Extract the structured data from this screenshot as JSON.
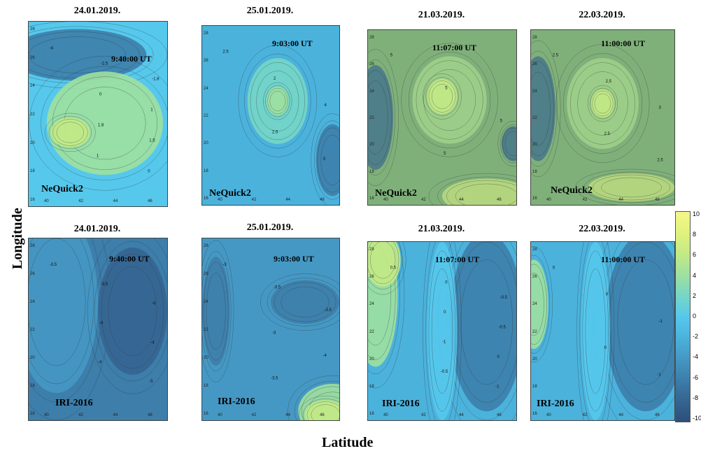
{
  "axes": {
    "ylabel": "Longitude",
    "xlabel": "Latitude"
  },
  "chart_data": [
    {
      "type": "heatmap",
      "row": "NeQuick2",
      "title": "24.01.2019.",
      "time": "9:40:00 UT",
      "model": "NeQuick2",
      "x_ticks": [
        "40",
        "42",
        "44",
        "46"
      ],
      "y_ticks": [
        "28",
        "26",
        "24",
        "22",
        "20",
        "18",
        "16"
      ],
      "contour_labels": [
        "-4",
        "-2.5",
        "-1.8",
        "0",
        "1",
        "1.8",
        "1.5",
        "1",
        "0"
      ]
    },
    {
      "type": "heatmap",
      "row": "NeQuick2",
      "title": "25.01.2019.",
      "time": "9:03:00 UT",
      "model": "NeQuick2",
      "x_ticks": [
        "40",
        "42",
        "44",
        "46"
      ],
      "y_ticks": [
        "28",
        "26",
        "24",
        "22",
        "20",
        "18",
        "16"
      ],
      "contour_labels": [
        "2.5",
        "2",
        "4",
        "2.5",
        "3"
      ]
    },
    {
      "type": "heatmap",
      "row": "NeQuick2",
      "title": "21.03.2019.",
      "time": "11:07:00 UT",
      "model": "NeQuick2",
      "x_ticks": [
        "40",
        "42",
        "44",
        "46"
      ],
      "y_ticks": [
        "28",
        "26",
        "24",
        "22",
        "20",
        "18",
        "16"
      ],
      "contour_labels": [
        "5",
        "5",
        "5",
        "5"
      ]
    },
    {
      "type": "heatmap",
      "row": "NeQuick2",
      "title": "22.03.2019.",
      "time": "11:00:00 UT",
      "model": "NeQuick2",
      "x_ticks": [
        "40",
        "42",
        "44",
        "46"
      ],
      "y_ticks": [
        "28",
        "26",
        "24",
        "22",
        "20",
        "18",
        "16"
      ],
      "contour_labels": [
        "2.5",
        "2.5",
        "3",
        "2.5",
        "2.5"
      ]
    },
    {
      "type": "heatmap",
      "row": "IRI-2016",
      "title": "24.01.2019.",
      "time": "9:40:00 UT",
      "model": "IRI-2016",
      "x_ticks": [
        "40",
        "42",
        "44",
        "46"
      ],
      "y_ticks": [
        "28",
        "26",
        "24",
        "22",
        "20",
        "18",
        "16"
      ],
      "contour_labels": [
        "-3.5",
        "-3.5",
        "-6",
        "-4",
        "-4",
        "-4",
        "-5"
      ]
    },
    {
      "type": "heatmap",
      "row": "IRI-2016",
      "title": "25.01.2019.",
      "time": "9:03:00 UT",
      "model": "IRI-2016",
      "x_ticks": [
        "40",
        "42",
        "44",
        "46"
      ],
      "y_ticks": [
        "28",
        "26",
        "24",
        "22",
        "20",
        "18",
        "16"
      ],
      "contour_labels": [
        "-3",
        "-3.5",
        "-3.5",
        "-3",
        "-4",
        "-3.5"
      ]
    },
    {
      "type": "heatmap",
      "row": "IRI-2016",
      "title": "21.03.2019.",
      "time": "11:07:00 UT",
      "model": "IRI-2016",
      "x_ticks": [
        "40",
        "42",
        "44",
        "46"
      ],
      "y_ticks": [
        "28",
        "26",
        "24",
        "22",
        "20",
        "18",
        "16"
      ],
      "contour_labels": [
        "0.5",
        "0",
        "-0.5",
        "0",
        "-0.5",
        "-1",
        "0",
        "-0.5",
        "-1"
      ]
    },
    {
      "type": "heatmap",
      "row": "IRI-2016",
      "title": "22.03.2019.",
      "time": "11:00:00 UT",
      "model": "IRI-2016",
      "x_ticks": [
        "40",
        "42",
        "44",
        "46"
      ],
      "y_ticks": [
        "28",
        "26",
        "24",
        "22",
        "20",
        "18",
        "16"
      ],
      "contour_labels": [
        "0",
        "0",
        "-1",
        "0",
        "-1"
      ]
    }
  ],
  "colorbar": {
    "range": [
      -10,
      10
    ],
    "ticks": [
      "10",
      "8",
      "6",
      "4",
      "2",
      "0",
      "-2",
      "-4",
      "-6",
      "-8",
      "-10"
    ],
    "colors": [
      "#2d4f7a",
      "#356591",
      "#3d7eab",
      "#4598c4",
      "#4bb2dc",
      "#56c8ec",
      "#76d6c6",
      "#9fe0a0",
      "#c3ea86",
      "#e2f27c",
      "#f5f78a"
    ]
  }
}
